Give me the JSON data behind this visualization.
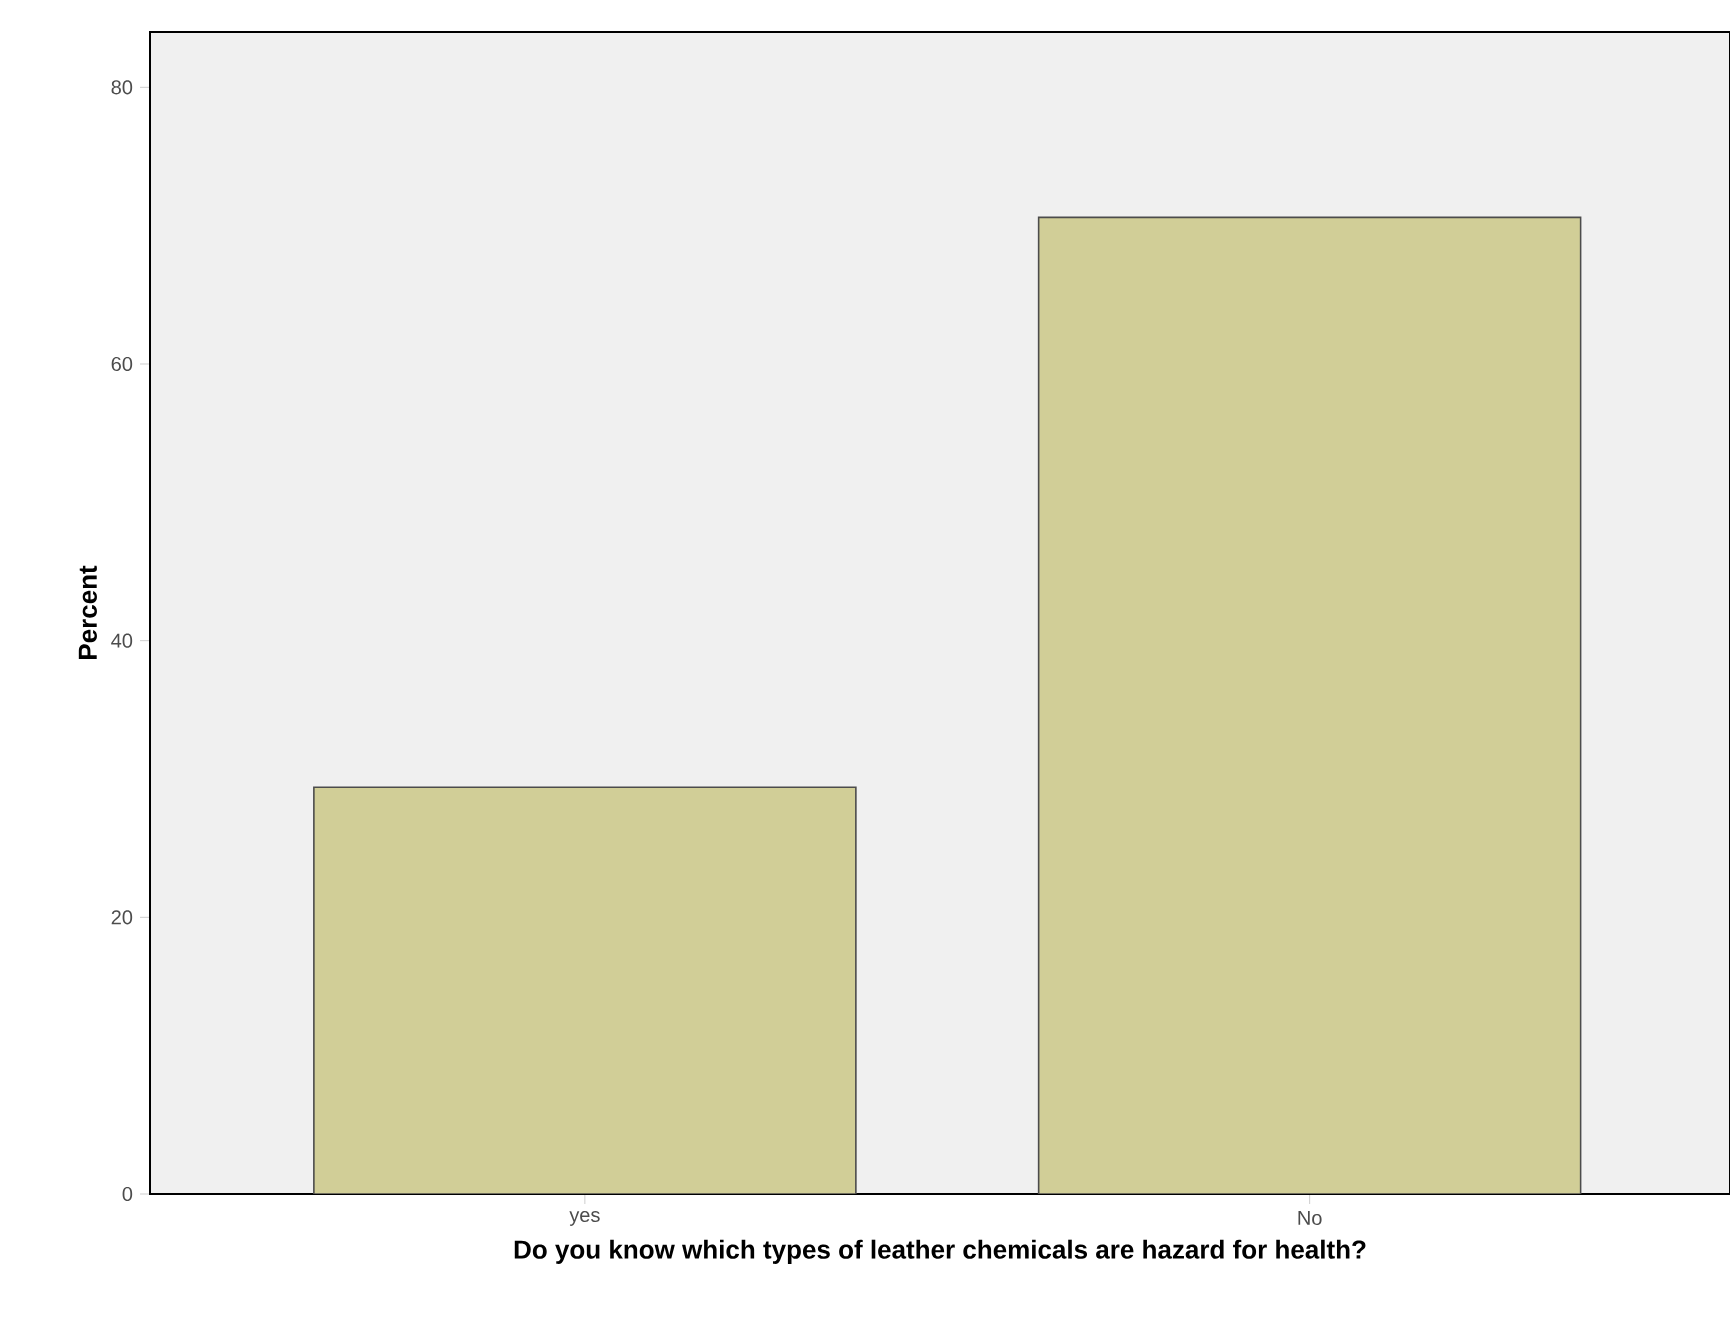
{
  "chart_data": {
    "type": "bar",
    "xlabel": "Do you know which types of leather chemicals are hazard for health?",
    "ylabel": "Percent",
    "categories": [
      "yes",
      "No"
    ],
    "values": [
      29.4,
      70.6
    ],
    "color": "#d1ce97",
    "ylim": [
      0,
      84
    ],
    "yticks": [
      0,
      20,
      40,
      60,
      80
    ],
    "grid": false
  }
}
